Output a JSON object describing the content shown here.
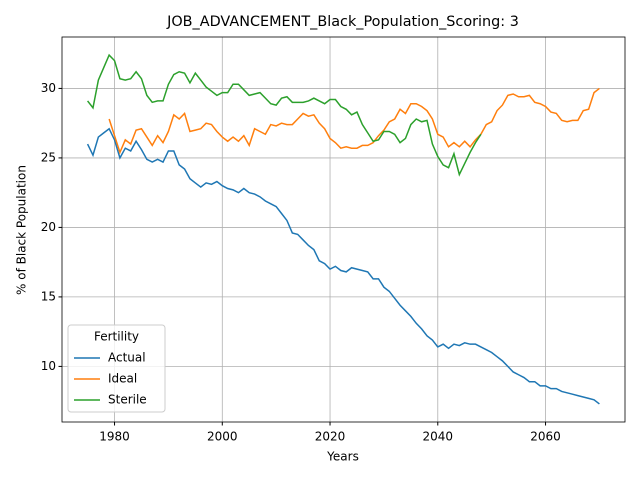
{
  "chart_data": {
    "type": "line",
    "title": "JOB_ADVANCEMENT_Black_Population_Scoring: 3",
    "x_label": "Years",
    "y_label": "% of Black Population",
    "legend_title": "Fertility",
    "legend": "lower left",
    "grid": true,
    "x": [
      1975,
      1976,
      1977,
      1978,
      1979,
      1980,
      1981,
      1982,
      1983,
      1984,
      1985,
      1986,
      1987,
      1988,
      1989,
      1990,
      1991,
      1992,
      1993,
      1994,
      1995,
      1996,
      1997,
      1998,
      1999,
      2000,
      2001,
      2002,
      2003,
      2004,
      2005,
      2006,
      2007,
      2008,
      2009,
      2010,
      2011,
      2012,
      2013,
      2014,
      2015,
      2016,
      2017,
      2018,
      2019,
      2020,
      2021,
      2022,
      2023,
      2024,
      2025,
      2026,
      2027,
      2028,
      2029,
      2030,
      2031,
      2032,
      2033,
      2034,
      2035,
      2036,
      2037,
      2038,
      2039,
      2040,
      2041,
      2042,
      2043,
      2044,
      2045,
      2046,
      2047,
      2048,
      2049,
      2050,
      2051,
      2052,
      2053,
      2054,
      2055,
      2056,
      2057,
      2058,
      2059,
      2060,
      2061,
      2062,
      2063,
      2064,
      2065,
      2066,
      2067,
      2068,
      2069,
      2070
    ],
    "series": [
      {
        "name": "Actual",
        "color": "#1f77b4",
        "values": [
          26.0,
          25.2,
          26.5,
          26.8,
          27.1,
          26.3,
          25.0,
          25.7,
          25.5,
          26.2,
          25.6,
          24.9,
          24.7,
          24.9,
          24.7,
          25.5,
          25.5,
          24.5,
          24.2,
          23.5,
          23.2,
          22.9,
          23.2,
          23.1,
          23.3,
          23.0,
          22.8,
          22.7,
          22.5,
          22.8,
          22.5,
          22.4,
          22.2,
          21.9,
          21.7,
          21.5,
          21.0,
          20.5,
          19.6,
          19.5,
          19.1,
          18.7,
          18.4,
          17.6,
          17.4,
          17.0,
          17.2,
          16.9,
          16.8,
          17.1,
          17.0,
          16.9,
          16.8,
          16.3,
          16.3,
          15.7,
          15.4,
          14.9,
          14.4,
          14.0,
          13.6,
          13.1,
          12.7,
          12.2,
          11.9,
          11.4,
          11.6,
          11.3,
          11.6,
          11.5,
          11.7,
          11.6,
          11.6,
          11.4,
          11.2,
          11.0,
          10.7,
          10.4,
          10.0,
          9.6,
          9.4,
          9.2,
          8.9,
          8.9,
          8.6,
          8.6,
          8.4,
          8.4,
          8.2,
          8.1,
          8.0,
          7.9,
          7.8,
          7.7,
          7.6,
          7.3
        ]
      },
      {
        "name": "Ideal",
        "color": "#ff7f0e",
        "values": [
          null,
          null,
          null,
          null,
          27.8,
          26.6,
          25.4,
          26.3,
          26.0,
          27.0,
          27.1,
          26.5,
          25.9,
          26.6,
          26.1,
          26.9,
          28.1,
          27.8,
          28.2,
          26.9,
          27.0,
          27.1,
          27.5,
          27.4,
          26.9,
          26.5,
          26.2,
          26.5,
          26.2,
          26.6,
          25.9,
          27.1,
          26.9,
          26.7,
          27.4,
          27.3,
          27.5,
          27.4,
          27.4,
          27.8,
          28.2,
          28.0,
          28.1,
          27.5,
          27.1,
          26.4,
          26.1,
          25.7,
          25.8,
          25.7,
          25.7,
          25.9,
          25.9,
          26.1,
          26.6,
          27.0,
          27.6,
          27.8,
          28.5,
          28.2,
          28.9,
          28.9,
          28.7,
          28.4,
          27.8,
          26.7,
          26.5,
          25.8,
          26.1,
          25.8,
          26.2,
          25.8,
          26.3,
          26.7,
          27.4,
          27.6,
          28.4,
          28.8,
          29.5,
          29.6,
          29.4,
          29.4,
          29.5,
          29.0,
          28.9,
          28.7,
          28.3,
          28.2,
          27.7,
          27.6,
          27.7,
          27.7,
          28.4,
          28.5,
          29.7,
          30.0
        ]
      },
      {
        "name": "Sterile",
        "color": "#2ca02c",
        "values": [
          29.1,
          28.6,
          30.6,
          31.5,
          32.4,
          32.0,
          30.7,
          30.6,
          30.7,
          31.2,
          30.7,
          29.5,
          29.0,
          29.1,
          29.1,
          30.3,
          31.0,
          31.2,
          31.1,
          30.4,
          31.1,
          30.6,
          30.1,
          29.8,
          29.5,
          29.7,
          29.7,
          30.3,
          30.3,
          29.9,
          29.5,
          29.6,
          29.7,
          29.3,
          28.9,
          28.8,
          29.3,
          29.4,
          29.0,
          29.0,
          29.0,
          29.1,
          29.3,
          29.1,
          28.9,
          29.2,
          29.2,
          28.7,
          28.5,
          28.1,
          28.3,
          27.4,
          26.8,
          26.2,
          26.3,
          26.9,
          26.9,
          26.7,
          26.1,
          26.4,
          27.4,
          27.8,
          27.6,
          27.7,
          26.0,
          25.1,
          24.5,
          24.3,
          25.3,
          23.8,
          24.6,
          25.4,
          26.1,
          26.7,
          null,
          null,
          null,
          null,
          null,
          null,
          null,
          null,
          null,
          null,
          null,
          null,
          null,
          null,
          null,
          null,
          null,
          null,
          null,
          null,
          null,
          null
        ]
      }
    ],
    "xlim": [
      1970.25,
      2074.75
    ],
    "ylim": [
      6.0,
      33.7
    ],
    "xticks": [
      1980,
      2000,
      2020,
      2040,
      2060
    ],
    "yticks": [
      10,
      15,
      20,
      25,
      30
    ]
  }
}
